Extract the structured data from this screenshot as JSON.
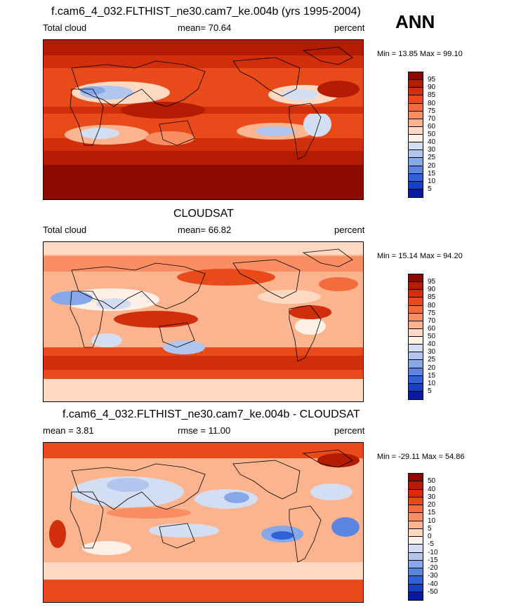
{
  "season": "ANN",
  "panels": [
    {
      "title": "f.cam6_4_032.FLTHIST_ne30.cam7_ke.004b (yrs 1995-2004)",
      "left_label": "Total cloud",
      "center_label": "mean=  70.64",
      "right_label": "percent",
      "minmax": "Min =  13.85 Max =  99.10",
      "colorbar_labels": [
        "95",
        "90",
        "85",
        "80",
        "75",
        "70",
        "60",
        "50",
        "40",
        "30",
        "25",
        "20",
        "15",
        "10",
        "5"
      ],
      "colorbar_colors": [
        "#8c0a00",
        "#b31b02",
        "#d12e0c",
        "#e84a1a",
        "#f46b3d",
        "#f98e63",
        "#fcb48f",
        "#fdd9c2",
        "#fdf0e6",
        "#d3def3",
        "#b0c6ee",
        "#86a8e8",
        "#5a86e0",
        "#2f62d6",
        "#1440c4",
        "#0a1aa0"
      ]
    },
    {
      "title": "CLOUDSAT",
      "left_label": "Total cloud",
      "center_label": "mean=  66.82",
      "right_label": "percent",
      "minmax": "Min =  15.14 Max =  94.20",
      "colorbar_labels": [
        "95",
        "90",
        "85",
        "80",
        "75",
        "70",
        "60",
        "50",
        "40",
        "30",
        "25",
        "20",
        "15",
        "10",
        "5"
      ],
      "colorbar_colors": [
        "#8c0a00",
        "#b31b02",
        "#d12e0c",
        "#e84a1a",
        "#f46b3d",
        "#f98e63",
        "#fcb48f",
        "#fdd9c2",
        "#fdf0e6",
        "#d3def3",
        "#b0c6ee",
        "#86a8e8",
        "#5a86e0",
        "#2f62d6",
        "#1440c4",
        "#0a1aa0"
      ]
    },
    {
      "title": "f.cam6_4_032.FLTHIST_ne30.cam7_ke.004b - CLOUDSAT",
      "left_label": "mean =   3.81",
      "center_label": "rmse =  11.00",
      "right_label": "percent",
      "minmax": "Min = -29.11 Max =  54.86",
      "colorbar_labels": [
        "50",
        "40",
        "30",
        "20",
        "15",
        "10",
        "5",
        "0",
        "-5",
        "-10",
        "-15",
        "-20",
        "-30",
        "-40",
        "-50"
      ],
      "colorbar_colors": [
        "#8c0a00",
        "#b31b02",
        "#d12e0c",
        "#e84a1a",
        "#f46b3d",
        "#f98e63",
        "#fcb48f",
        "#fdd9c2",
        "#fdf0e6",
        "#d3def3",
        "#b0c6ee",
        "#86a8e8",
        "#5a86e0",
        "#2f62d6",
        "#1440c4",
        "#0a1aa0"
      ]
    }
  ]
}
